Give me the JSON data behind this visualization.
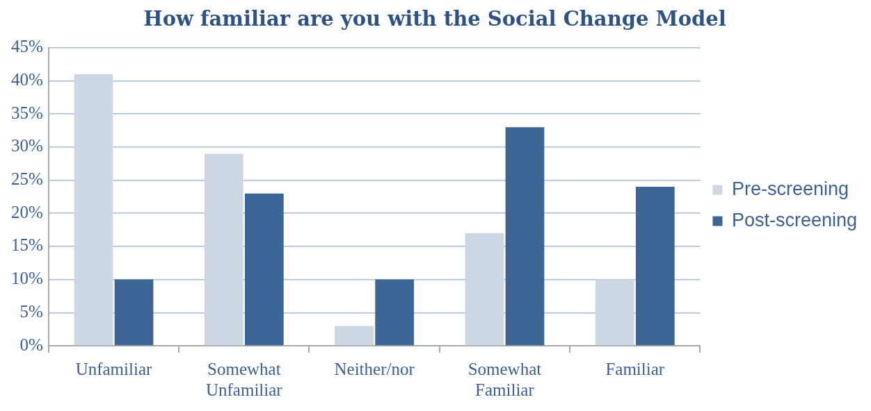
{
  "chart_data": {
    "type": "bar",
    "title": "How familiar are you with the Social Change Model",
    "categories": [
      "Unfamiliar",
      "Somewhat Unfamiliar",
      "Neither/nor",
      "Somewhat Familiar",
      "Familiar"
    ],
    "series": [
      {
        "name": "Pre-screening",
        "color": "#cdd7e3",
        "values": [
          41,
          29,
          3,
          17,
          10
        ]
      },
      {
        "name": "Post-screening",
        "color": "#3d6596",
        "values": [
          10,
          23,
          10,
          33,
          24
        ]
      }
    ],
    "ylim": [
      0,
      45
    ],
    "yticks": [
      {
        "value": 0,
        "label": "0%"
      },
      {
        "value": 5,
        "label": "5%"
      },
      {
        "value": 10,
        "label": "10%"
      },
      {
        "value": 15,
        "label": "15%"
      },
      {
        "value": 20,
        "label": "20%"
      },
      {
        "value": 25,
        "label": "25%"
      },
      {
        "value": 30,
        "label": "30%"
      },
      {
        "value": 35,
        "label": "35%"
      },
      {
        "value": 40,
        "label": "40%"
      },
      {
        "value": 45,
        "label": "45%"
      }
    ],
    "grid": "y",
    "legend": "right"
  }
}
